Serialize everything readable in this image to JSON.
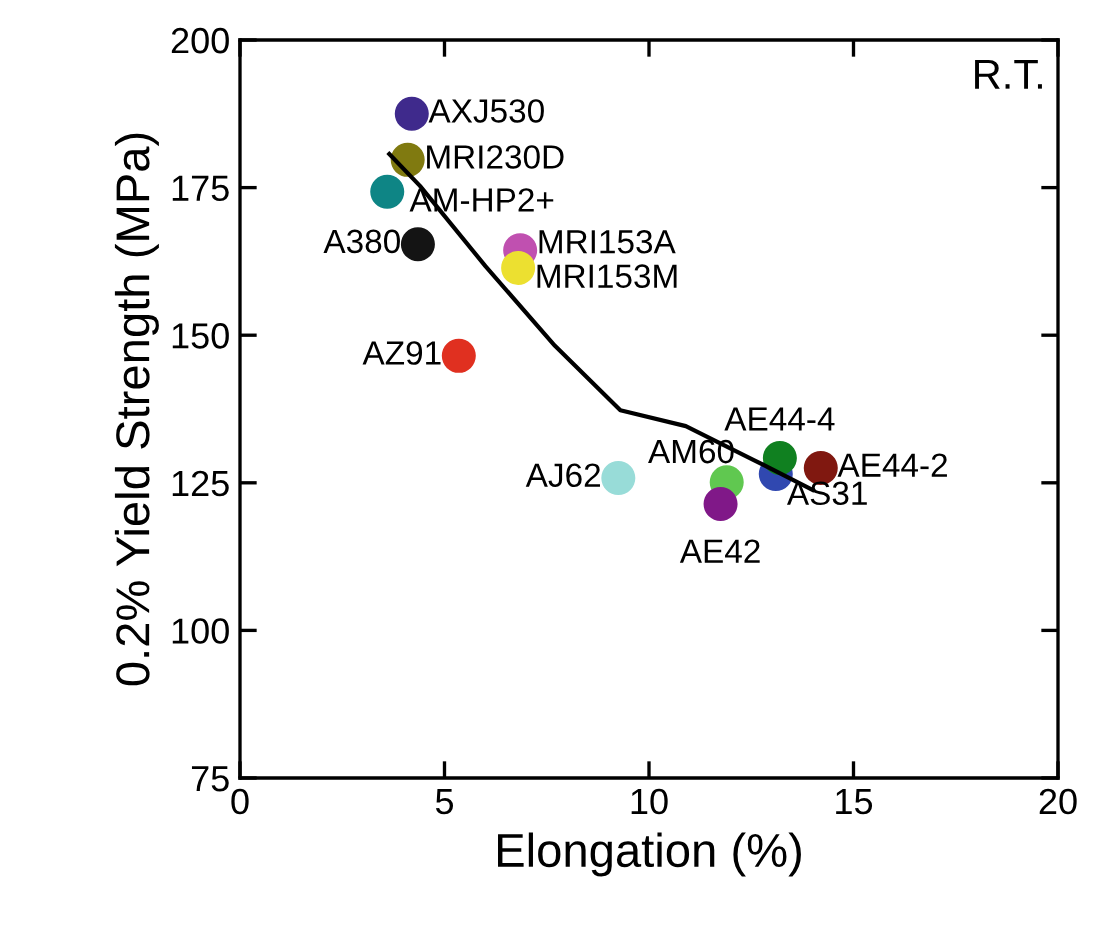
{
  "chart_data": {
    "type": "scatter",
    "xlabel": "Elongation (%)",
    "ylabel": "0.2% Yield Strength (MPa)",
    "annotations": [
      "R.T."
    ],
    "xlim": [
      0,
      20
    ],
    "ylim": [
      75,
      200
    ],
    "xticks": [
      0,
      5,
      10,
      15,
      20
    ],
    "yticks": [
      75,
      100,
      125,
      150,
      175,
      200
    ],
    "grid": false,
    "legend": false,
    "marker": "circle",
    "series": [
      {
        "type": "line",
        "marker": "none",
        "color": "#000000",
        "x": [
          3.65,
          4.4,
          6.0,
          7.7,
          9.3,
          10.9,
          12.55,
          14.0
        ],
        "values": [
          180.7,
          175.3,
          161.7,
          148.2,
          137.3,
          134.6,
          128.9,
          123.8
        ]
      },
      {
        "name": "AXJ530",
        "color": "#3f2a8c",
        "x": [
          4.2
        ],
        "values": [
          187.5
        ]
      },
      {
        "name": "MRI230D",
        "color": "#807a10",
        "x": [
          4.1
        ],
        "values": [
          179.7
        ]
      },
      {
        "name": "AM-HP2+",
        "color": "#0e8585",
        "x": [
          3.6
        ],
        "values": [
          174.3
        ]
      },
      {
        "name": "A380",
        "color": "#141414",
        "x": [
          4.35
        ],
        "values": [
          165.4
        ]
      },
      {
        "name": "MRI153A",
        "color": "#c050b0",
        "x": [
          6.85
        ],
        "values": [
          164.4
        ]
      },
      {
        "name": "MRI153M",
        "color": "#ece030",
        "x": [
          6.8
        ],
        "values": [
          161.4
        ]
      },
      {
        "name": "AZ91",
        "color": "#e03020",
        "x": [
          5.35
        ],
        "values": [
          146.5
        ]
      },
      {
        "name": "AJ62",
        "color": "#98dcd8",
        "x": [
          9.25
        ],
        "values": [
          125.8
        ]
      },
      {
        "name": "AS31",
        "color": "#3048b0",
        "x": [
          13.1
        ],
        "values": [
          126.5
        ]
      },
      {
        "name": "AM60",
        "color": "#60c850",
        "x": [
          11.9
        ],
        "values": [
          125.1
        ]
      },
      {
        "name": "AE42",
        "color": "#801888",
        "x": [
          11.75
        ],
        "values": [
          121.4
        ]
      },
      {
        "name": "AE44-4",
        "color": "#108020",
        "x": [
          13.2
        ],
        "values": [
          129.2
        ]
      },
      {
        "name": "AE44-2",
        "color": "#801810",
        "x": [
          14.2
        ],
        "values": [
          127.5
        ]
      }
    ]
  }
}
